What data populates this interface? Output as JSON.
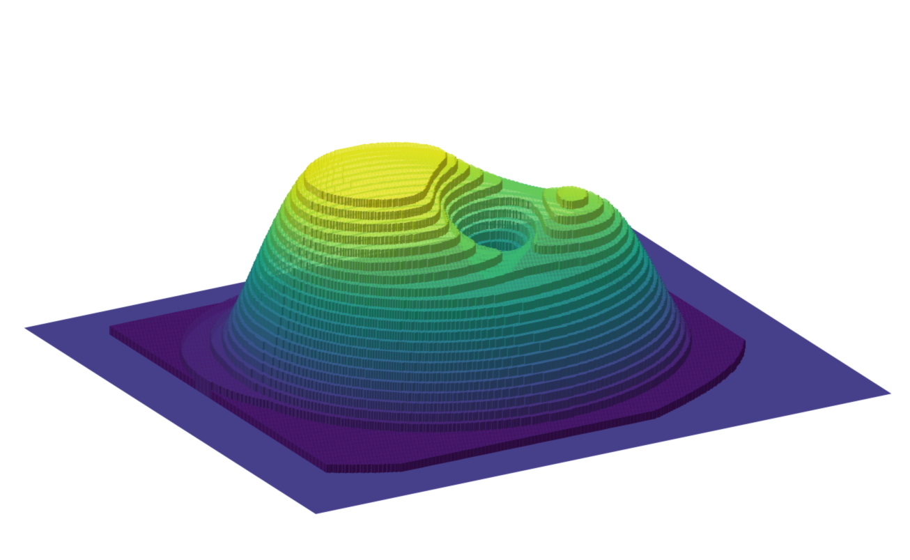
{
  "scene": {
    "kind": "3d-terraced-surface",
    "colormap": "viridis",
    "colors": {
      "background": "#ffffff",
      "base_plane": "#46408a",
      "peak": "#e1e21c",
      "wall_shadow": "#1b1740"
    },
    "terrace_levels": 22,
    "features": {
      "large_plateau": "present",
      "small_peak": "present",
      "central_pit": "present"
    }
  }
}
